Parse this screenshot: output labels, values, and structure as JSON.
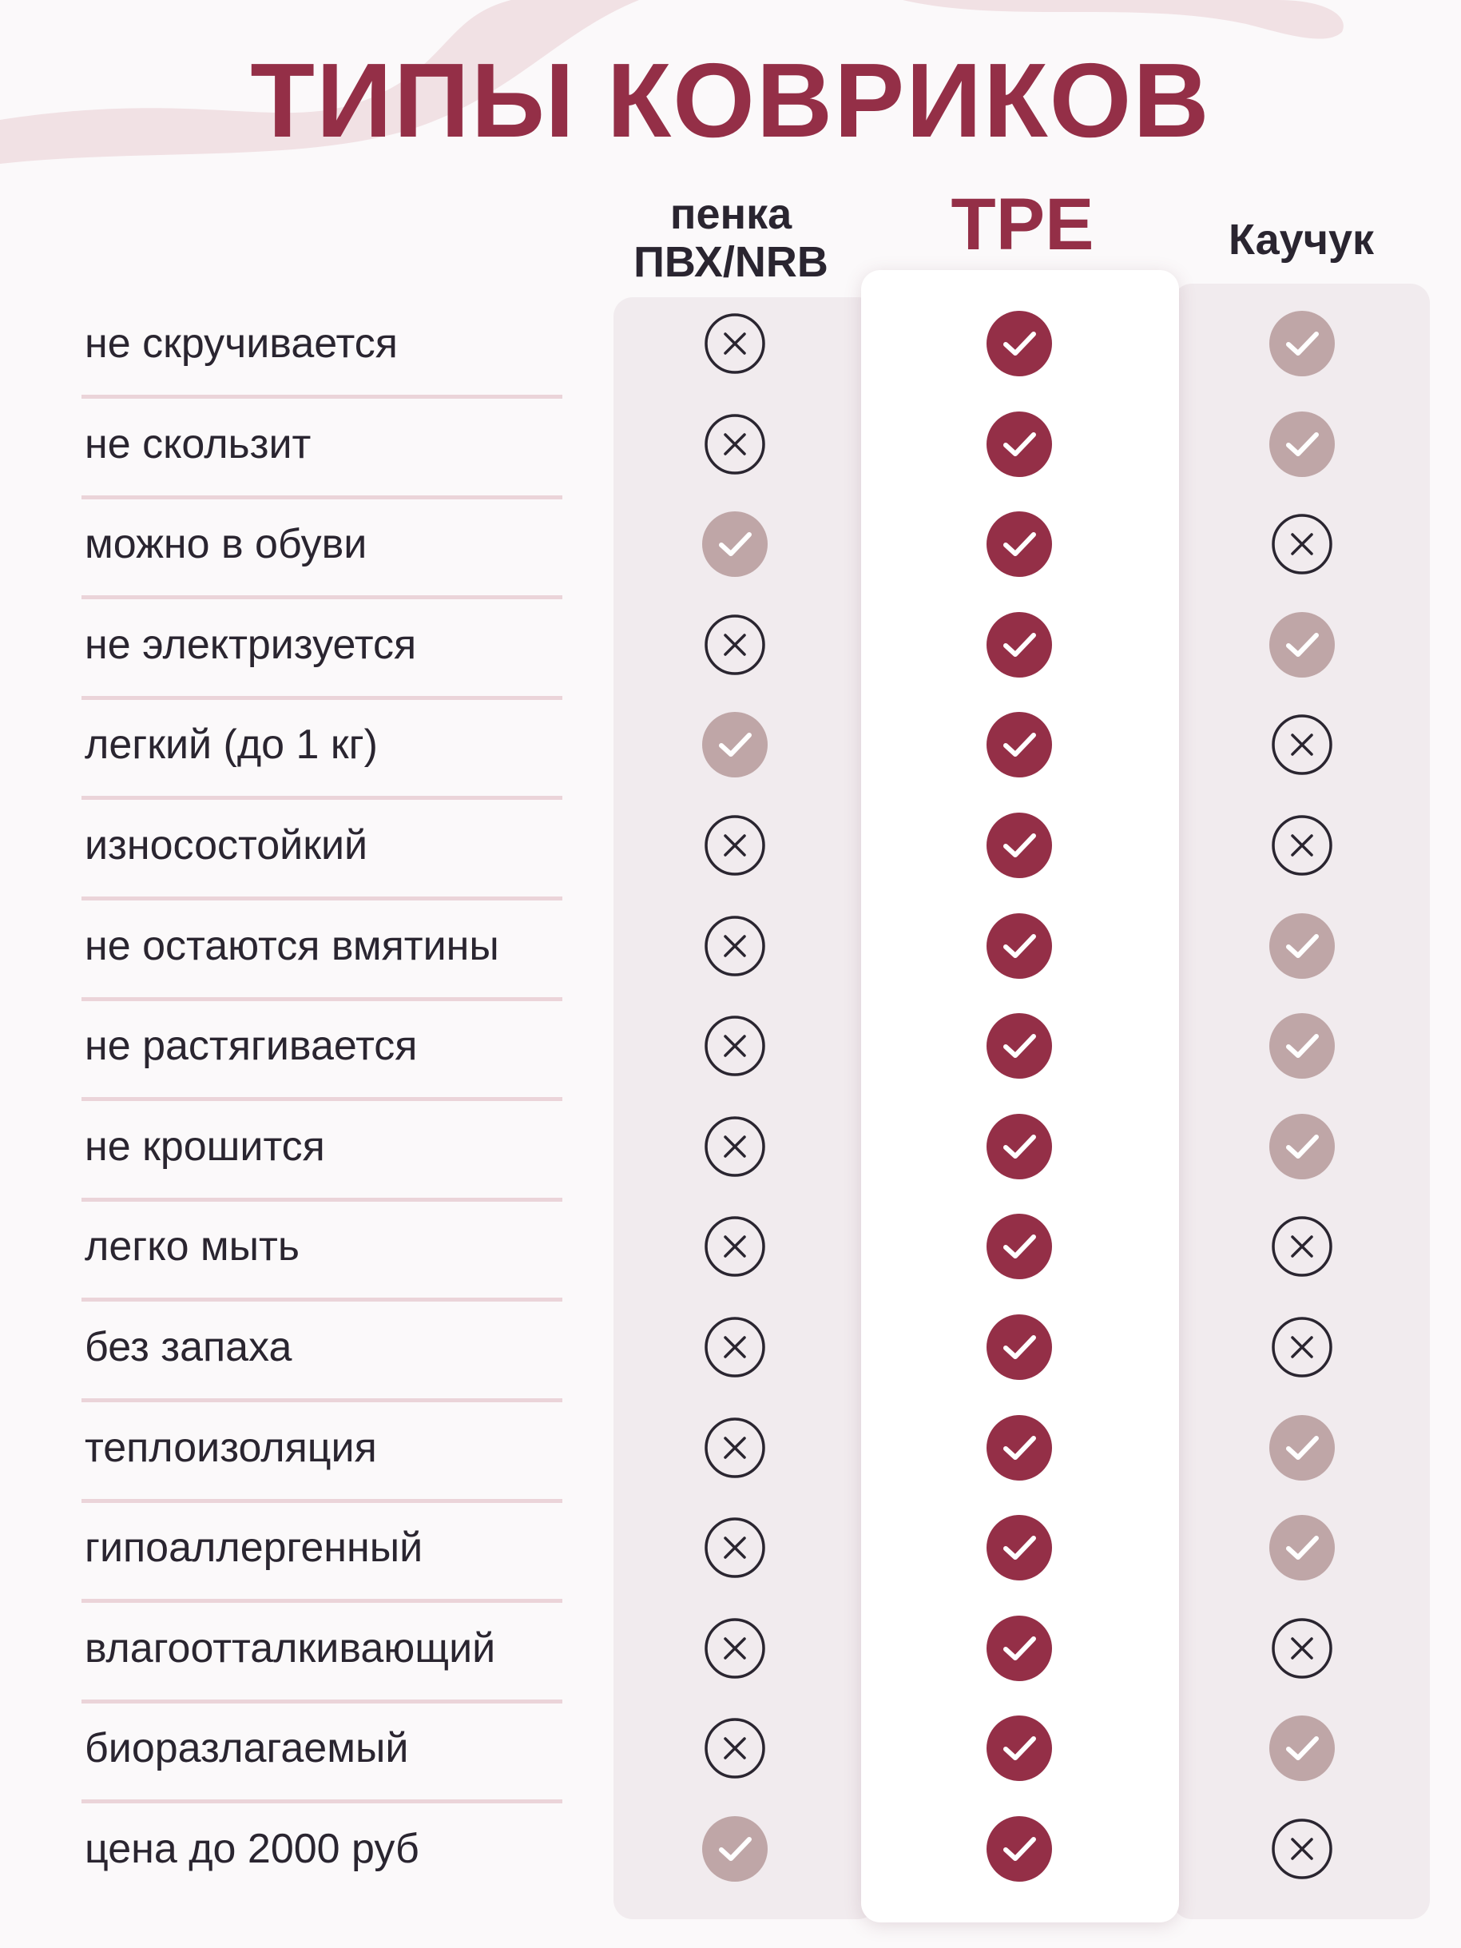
{
  "title": "ТИПЫ КОВРИКОВ",
  "colors": {
    "accent": "#942f47",
    "muted_check": "#bfa6a7",
    "text": "#2a2530",
    "divider": "#ebd4d9",
    "column_bg": "#f1ebee",
    "swoosh": "#f1e1e4"
  },
  "icons": {
    "yes_accent": "check-circle-accent-icon",
    "yes_muted": "check-circle-muted-icon",
    "no": "x-circle-icon"
  },
  "columns": [
    {
      "id": "pvc",
      "label_lines": [
        "пенка",
        "ПВХ/NRB"
      ]
    },
    {
      "id": "tpe",
      "label_lines": [
        "TPE"
      ]
    },
    {
      "id": "rubber",
      "label_lines": [
        "Каучук"
      ]
    }
  ],
  "rows": [
    {
      "label": "не скручивается",
      "pvc": "no",
      "tpe": "yes",
      "rubber": "yes"
    },
    {
      "label": "не скользит",
      "pvc": "no",
      "tpe": "yes",
      "rubber": "yes"
    },
    {
      "label": "можно в обуви",
      "pvc": "yes",
      "tpe": "yes",
      "rubber": "no"
    },
    {
      "label": "не электризуется",
      "pvc": "no",
      "tpe": "yes",
      "rubber": "yes"
    },
    {
      "label": "легкий (до 1 кг)",
      "pvc": "yes",
      "tpe": "yes",
      "rubber": "no"
    },
    {
      "label": "износостойкий",
      "pvc": "no",
      "tpe": "yes",
      "rubber": "no"
    },
    {
      "label": "не остаются вмятины",
      "pvc": "no",
      "tpe": "yes",
      "rubber": "yes"
    },
    {
      "label": "не растягивается",
      "pvc": "no",
      "tpe": "yes",
      "rubber": "yes"
    },
    {
      "label": "не крошится",
      "pvc": "no",
      "tpe": "yes",
      "rubber": "yes"
    },
    {
      "label": "легко мыть",
      "pvc": "no",
      "tpe": "yes",
      "rubber": "no"
    },
    {
      "label": "без запаха",
      "pvc": "no",
      "tpe": "yes",
      "rubber": "no"
    },
    {
      "label": "теплоизоляция",
      "pvc": "no",
      "tpe": "yes",
      "rubber": "yes"
    },
    {
      "label": "гипоаллергенный",
      "pvc": "no",
      "tpe": "yes",
      "rubber": "yes"
    },
    {
      "label": "влагоотталкивающий",
      "pvc": "no",
      "tpe": "yes",
      "rubber": "no"
    },
    {
      "label": "биоразлагаемый",
      "pvc": "no",
      "tpe": "yes",
      "rubber": "yes"
    },
    {
      "label": "цена до 2000 руб",
      "pvc": "yes",
      "tpe": "yes",
      "rubber": "no"
    }
  ]
}
